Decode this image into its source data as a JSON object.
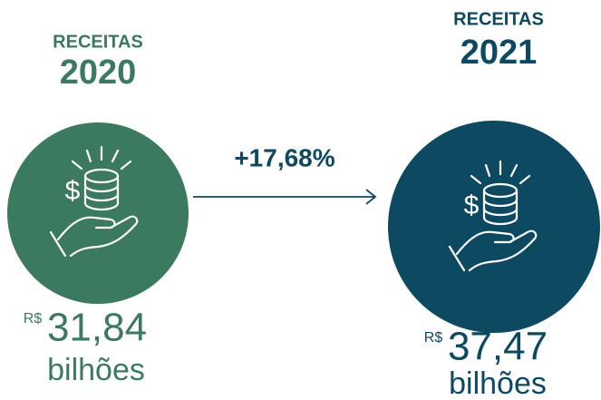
{
  "items": [
    {
      "label": "RECEITAS",
      "year": "2020",
      "currency": "R$",
      "value": "31,84",
      "unit": "bilhões"
    },
    {
      "label": "RECEITAS",
      "year": "2021",
      "currency": "R$",
      "value": "37,47",
      "unit": "bilhões"
    }
  ],
  "change": "+17,68%"
}
